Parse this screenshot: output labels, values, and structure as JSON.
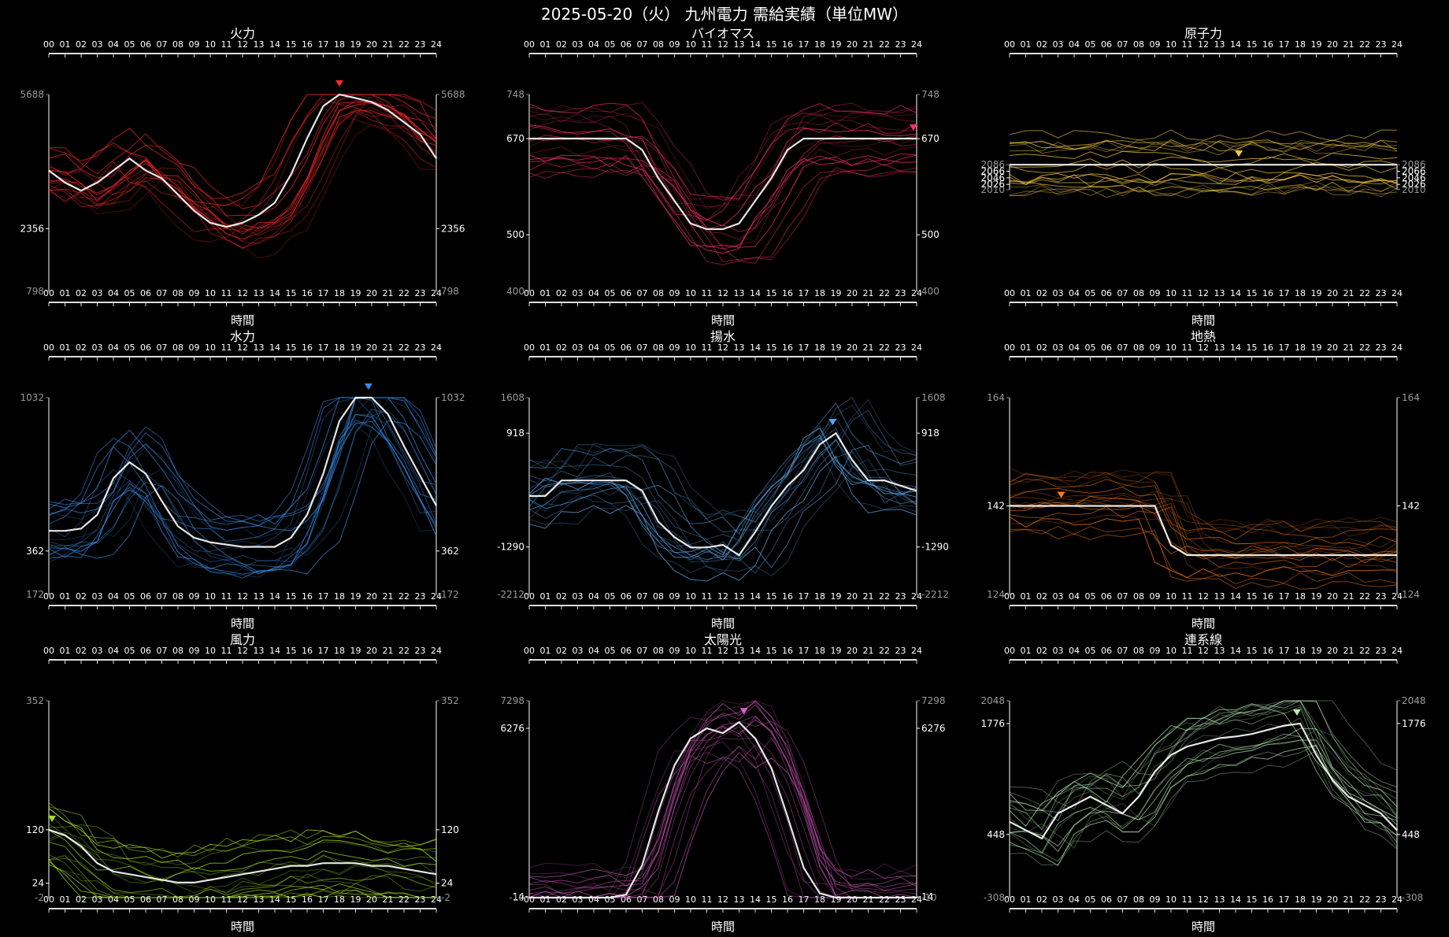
{
  "title": "2025-05-20（火） 九州電力 需給実績（単位MW）",
  "x_axis_label": "時間",
  "hour_ticks": [
    "00",
    "01",
    "02",
    "03",
    "04",
    "05",
    "06",
    "07",
    "08",
    "09",
    "10",
    "11",
    "12",
    "13",
    "14",
    "15",
    "16",
    "17",
    "18",
    "19",
    "20",
    "21",
    "22",
    "23",
    "24"
  ],
  "chart_data": [
    {
      "type": "line",
      "title": "火力",
      "color": "#ff2a2a",
      "yticks": [
        5688,
        2356,
        798
      ],
      "ylim": [
        798,
        5688
      ],
      "highlight": [
        3800,
        3500,
        3300,
        3500,
        3800,
        4100,
        3800,
        3600,
        3200,
        2800,
        2500,
        2400,
        2500,
        2700,
        3000,
        3700,
        4600,
        5400,
        5688,
        5600,
        5500,
        5300,
        5000,
        4700,
        4100
      ],
      "peak_hour": 18
    },
    {
      "type": "line",
      "title": "バイオマス",
      "color": "#ff2f6a",
      "yticks": [
        748,
        670,
        500,
        400
      ],
      "ylim": [
        400,
        748
      ],
      "highlight": [
        670,
        670,
        670,
        670,
        670,
        670,
        670,
        650,
        600,
        560,
        520,
        510,
        510,
        520,
        560,
        600,
        650,
        670,
        670,
        670,
        670,
        670,
        670,
        670,
        670
      ],
      "peak_hour": 23.8
    },
    {
      "type": "line",
      "title": "原子力",
      "color": "#f5c842",
      "yticks": [
        2086,
        2066,
        2046,
        2026,
        2010
      ],
      "ylim": [
        1700,
        2300
      ],
      "highlight": [
        2086,
        2086,
        2086,
        2086,
        2086,
        2086,
        2086,
        2086,
        2086,
        2086,
        2086,
        2086,
        2086,
        2086,
        2086,
        2086,
        2086,
        2086,
        2086,
        2086,
        2086,
        2086,
        2086,
        2086,
        2086
      ],
      "peak_hour": 14.2
    },
    {
      "type": "line",
      "title": "水力",
      "color": "#3a8ee8",
      "yticks": [
        1032,
        362,
        172
      ],
      "ylim": [
        172,
        1032
      ],
      "highlight": [
        450,
        450,
        460,
        520,
        680,
        750,
        700,
        580,
        470,
        420,
        400,
        390,
        380,
        380,
        380,
        420,
        520,
        700,
        930,
        1032,
        1032,
        960,
        820,
        690,
        560
      ],
      "peak_hour": 19.8
    },
    {
      "type": "line",
      "title": "揚水",
      "color": "#5aa6e8",
      "yticks": [
        1608,
        918,
        -1290,
        -2212
      ],
      "ylim": [
        -2212,
        1608
      ],
      "highlight": [
        -300,
        -300,
        0,
        0,
        0,
        0,
        0,
        -200,
        -800,
        -1100,
        -1300,
        -1300,
        -1250,
        -1450,
        -1000,
        -500,
        -100,
        200,
        700,
        918,
        400,
        0,
        0,
        -100,
        -200
      ],
      "peak_hour": 18.8
    },
    {
      "type": "line",
      "title": "地熱",
      "color": "#ff7a14",
      "yticks": [
        164,
        142,
        124
      ],
      "ylim": [
        124,
        164
      ],
      "highlight": [
        142,
        142,
        142,
        142,
        142,
        142,
        142,
        142,
        142,
        142,
        134,
        132,
        132,
        132,
        132,
        132,
        132,
        132,
        132,
        132,
        132,
        132,
        132,
        132,
        132
      ],
      "peak_hour": 3.2
    },
    {
      "type": "line",
      "title": "風力",
      "color": "#a8e020",
      "yticks": [
        352,
        120,
        24,
        -2
      ],
      "ylim": [
        -2,
        352
      ],
      "highlight": [
        120,
        110,
        90,
        60,
        45,
        40,
        35,
        30,
        25,
        25,
        30,
        35,
        40,
        45,
        50,
        55,
        55,
        60,
        60,
        60,
        55,
        55,
        50,
        45,
        40
      ],
      "peak_hour": 0.2
    },
    {
      "type": "line",
      "title": "太陽光",
      "color": "#e060c8",
      "yticks": [
        7298,
        6276,
        14,
        -10
      ],
      "ylim": [
        -10,
        7298
      ],
      "highlight": [
        -10,
        -10,
        -10,
        -10,
        -10,
        -10,
        100,
        1200,
        3200,
        4900,
        5900,
        6276,
        6100,
        6500,
        5900,
        4800,
        3000,
        1100,
        150,
        -10,
        -10,
        -10,
        -10,
        -10,
        -10
      ],
      "peak_hour": 13.3
    },
    {
      "type": "line",
      "title": "連系線",
      "color": "#b8e8b8",
      "yticks": [
        2048,
        1776,
        448,
        -308
      ],
      "ylim": [
        -308,
        2048
      ],
      "highlight": [
        600,
        500,
        400,
        700,
        800,
        900,
        800,
        700,
        900,
        1200,
        1400,
        1500,
        1550,
        1600,
        1620,
        1650,
        1700,
        1750,
        1776,
        1400,
        1100,
        900,
        800,
        700,
        500
      ],
      "peak_hour": 17.8
    }
  ]
}
